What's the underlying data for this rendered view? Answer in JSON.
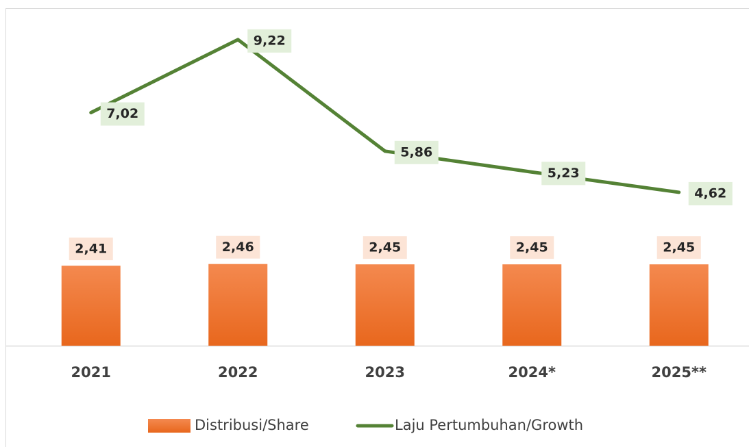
{
  "chart_data": {
    "type": "bar_line",
    "categories": [
      "2021",
      "2022",
      "2023",
      "2024*",
      "2025**"
    ],
    "ylim": [
      0,
      10
    ],
    "series": [
      {
        "name": "Distribusi/Share",
        "type": "bar",
        "color": "#ed7d31",
        "values": [
          2.41,
          2.46,
          2.45,
          2.45,
          2.45
        ],
        "value_labels": [
          "2,41",
          "2,46",
          "2,45",
          "2,45",
          "2,45"
        ]
      },
      {
        "name": "Laju Pertumbuhan/Growth",
        "type": "line",
        "color": "#548235",
        "values": [
          7.02,
          9.22,
          5.86,
          5.23,
          4.62
        ],
        "value_labels": [
          "7,02",
          "9,22",
          "5,86",
          "5,23",
          "4,62"
        ]
      }
    ]
  }
}
